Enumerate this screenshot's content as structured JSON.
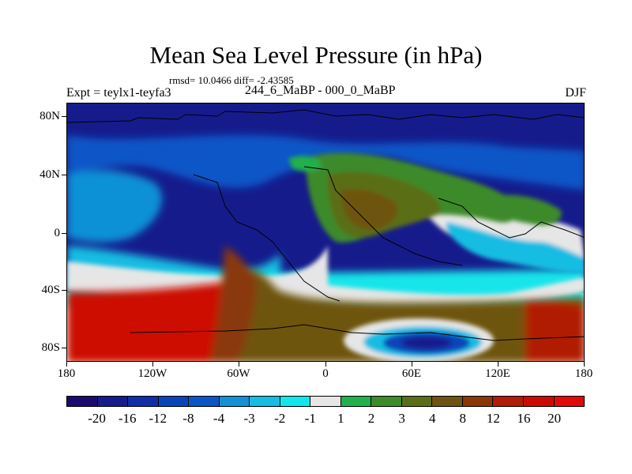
{
  "header": {
    "title": "Mean Sea Level Pressure (in hPa)",
    "stats": "rmsd= 10.0466 diff= -2.43585",
    "experiment": "Expt = teylx1-teyfa3",
    "period": "244_6_MaBP - 000_0_MaBP",
    "season": "DJF"
  },
  "axes": {
    "lat_labels": [
      "80N",
      "40N",
      "0",
      "40S",
      "80S"
    ],
    "lon_labels": [
      "180",
      "120W",
      "60W",
      "0",
      "60E",
      "120E",
      "180"
    ]
  },
  "colorbar": {
    "labels": [
      "-20",
      "-16",
      "-12",
      "-8",
      "-4",
      "-3",
      "-2",
      "-1",
      "1",
      "2",
      "3",
      "4",
      "8",
      "12",
      "16",
      "20"
    ],
    "colors": [
      "#1a0a6e",
      "#161b8c",
      "#0f2ea8",
      "#0b44b8",
      "#0a56c8",
      "#1191d6",
      "#15bde2",
      "#12e6ea",
      "#e6e6e6",
      "#22b04a",
      "#3d8a2a",
      "#5a6e18",
      "#6e5410",
      "#8a3808",
      "#b01c06",
      "#cc0a04",
      "#e00a0a"
    ]
  },
  "map": {
    "projection": "cylindrical equidistant",
    "lon_range": [
      -180,
      180
    ],
    "lat_range": [
      -90,
      90
    ],
    "variable": "mean sea level pressure difference (hPa)"
  }
}
